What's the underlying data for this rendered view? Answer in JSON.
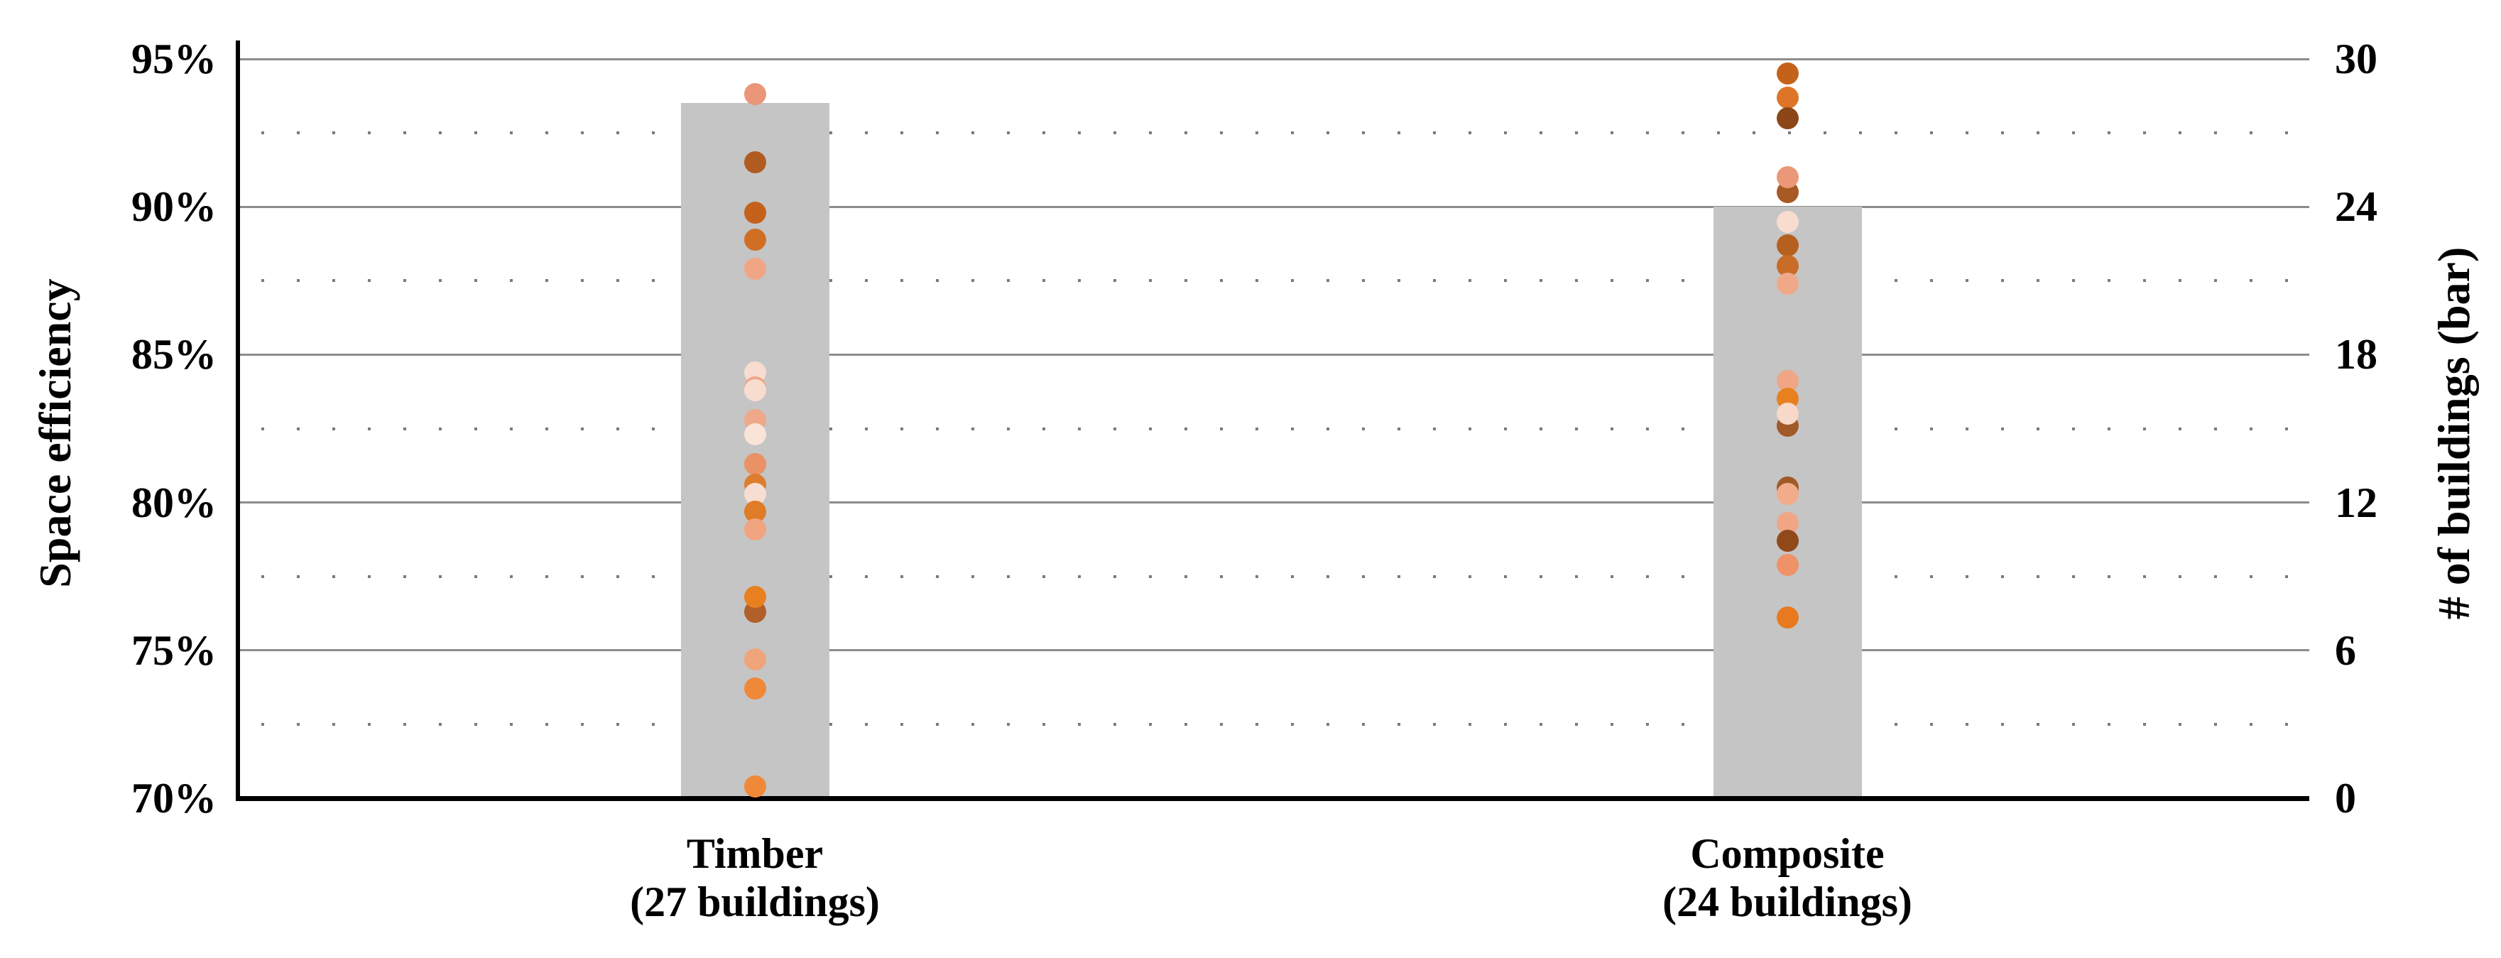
{
  "chart": {
    "left_axis": {
      "title": "Space efficiency"
    },
    "right_axis": {
      "title": "# of buildings (bar)"
    },
    "categories": [
      {
        "line1": "Timber",
        "line2": "(27 buildings)"
      },
      {
        "line1": "Composite",
        "line2": "(24 buildings)"
      }
    ]
  },
  "chart_data": {
    "type": "bar+strip",
    "title": "",
    "categories": [
      "Timber (27 buildings)",
      "Composite (24 buildings)"
    ],
    "left_axis": {
      "label": "Space efficiency",
      "unit": "%",
      "range": [
        70,
        95
      ],
      "major_step": 5,
      "minor_step": 2.5,
      "tick_labels": [
        "95%",
        "90%",
        "85%",
        "80%",
        "75%",
        "70%"
      ]
    },
    "right_axis": {
      "label": "# of buildings (bar)",
      "range": [
        0,
        30
      ],
      "major_step": 6,
      "minor_step": 3,
      "tick_labels": [
        "30",
        "24",
        "18",
        "12",
        "6",
        "0"
      ]
    },
    "gridlines": {
      "major": "solid",
      "minor": "dotted"
    },
    "legend": "none",
    "bars": {
      "name": "# of buildings",
      "values": [
        27,
        24
      ],
      "rendered_top_values": [
        28.2,
        24
      ]
    },
    "series": [
      {
        "name": "Timber space efficiency (%)",
        "points": [
          {
            "v": 93.8,
            "c": "#EB9678"
          },
          {
            "v": 91.5,
            "c": "#B05C20"
          },
          {
            "v": 89.8,
            "c": "#C4621C"
          },
          {
            "v": 88.9,
            "c": "#D06F24"
          },
          {
            "v": 87.9,
            "c": "#F0A585"
          },
          {
            "v": 84.4,
            "c": "#F8DCD0"
          },
          {
            "v": 83.9,
            "c": "#F0A585"
          },
          {
            "v": 83.8,
            "c": "#F8DCD0"
          },
          {
            "v": 82.8,
            "c": "#F0A88A"
          },
          {
            "v": 82.3,
            "c": "#FAE4D8"
          },
          {
            "v": 81.3,
            "c": "#EA9166"
          },
          {
            "v": 80.6,
            "c": "#DD7E2E"
          },
          {
            "v": 80.3,
            "c": "#F8DED2"
          },
          {
            "v": 79.7,
            "c": "#E07B28"
          },
          {
            "v": 79.1,
            "c": "#F0A47F"
          },
          {
            "v": 76.3,
            "c": "#B06028"
          },
          {
            "v": 76.8,
            "c": "#E8801F"
          },
          {
            "v": 74.7,
            "c": "#F0A479"
          },
          {
            "v": 73.7,
            "c": "#EF8838"
          },
          {
            "v": 70.4,
            "c": "#EF8838"
          }
        ]
      },
      {
        "name": "Composite space efficiency (%)",
        "points": [
          {
            "v": 94.5,
            "c": "#C4621C"
          },
          {
            "v": 93.7,
            "c": "#DD7427"
          },
          {
            "v": 93.0,
            "c": "#8C4618"
          },
          {
            "v": 90.5,
            "c": "#A85A24"
          },
          {
            "v": 91.0,
            "c": "#EA9878"
          },
          {
            "v": 89.5,
            "c": "#F8DCD0"
          },
          {
            "v": 88.7,
            "c": "#B5601F"
          },
          {
            "v": 88.0,
            "c": "#C86C28"
          },
          {
            "v": 87.4,
            "c": "#F0A888"
          },
          {
            "v": 84.1,
            "c": "#F0A585"
          },
          {
            "v": 83.5,
            "c": "#E8801F"
          },
          {
            "v": 82.6,
            "c": "#A05A28"
          },
          {
            "v": 83.0,
            "c": "#F8D8C8"
          },
          {
            "v": 80.5,
            "c": "#A05A28"
          },
          {
            "v": 80.3,
            "c": "#F2AC8C"
          },
          {
            "v": 79.3,
            "c": "#F0A585"
          },
          {
            "v": 78.7,
            "c": "#92491A"
          },
          {
            "v": 77.9,
            "c": "#EF9268"
          },
          {
            "v": 76.1,
            "c": "#E8791F"
          }
        ]
      }
    ]
  },
  "colors": {
    "bar": "#C5C5C5",
    "major_grid": "#8C8C8C",
    "minor_grid": "#7A7A7A",
    "axis": "#000000",
    "text": "#000000"
  }
}
